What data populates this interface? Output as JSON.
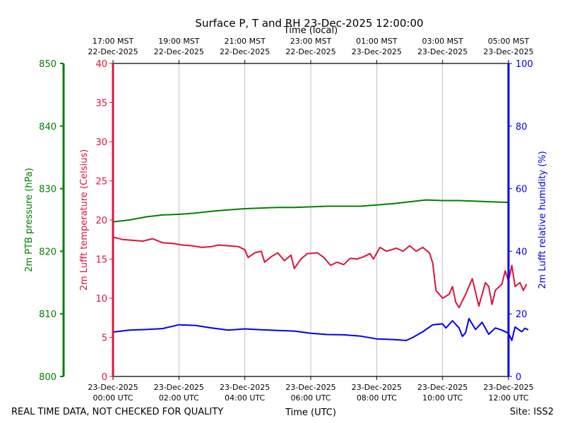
{
  "chart_data": {
    "type": "line",
    "title": "Surface P, T and RH 23-Dec-2025 12:00:00",
    "x_top_label": "Time (local)",
    "xlabel": "Time (UTC)",
    "footer_left": "REAL TIME DATA, NOT CHECKED FOR QUALITY",
    "footer_right": "Site: ISS2",
    "grid": "vertical",
    "x_utc_ticks": [
      {
        "line1": "23-Dec-2025",
        "line2": "00:00 UTC"
      },
      {
        "line1": "23-Dec-2025",
        "line2": "02:00 UTC"
      },
      {
        "line1": "23-Dec-2025",
        "line2": "04:00 UTC"
      },
      {
        "line1": "23-Dec-2025",
        "line2": "06:00 UTC"
      },
      {
        "line1": "23-Dec-2025",
        "line2": "08:00 UTC"
      },
      {
        "line1": "23-Dec-2025",
        "line2": "10:00 UTC"
      },
      {
        "line1": "23-Dec-2025",
        "line2": "12:00 UTC"
      }
    ],
    "x_local_ticks": [
      {
        "line1": "17:00 MST",
        "line2": "22-Dec-2025"
      },
      {
        "line1": "19:00 MST",
        "line2": "22-Dec-2025"
      },
      {
        "line1": "21:00 MST",
        "line2": "22-Dec-2025"
      },
      {
        "line1": "23:00 MST",
        "line2": "22-Dec-2025"
      },
      {
        "line1": "01:00 MST",
        "line2": "23-Dec-2025"
      },
      {
        "line1": "03:00 MST",
        "line2": "23-Dec-2025"
      },
      {
        "line1": "05:00 MST",
        "line2": "23-Dec-2025"
      }
    ],
    "xlim_hours_utc": [
      0,
      12
    ],
    "axes": {
      "pressure": {
        "label": "2m PTB pressure (hPa)",
        "ylim": [
          800,
          850
        ],
        "ticks": [
          800,
          810,
          820,
          830,
          840,
          850
        ],
        "color": "#008000",
        "side": "far-left"
      },
      "temperature": {
        "label": "2m Lufft temperature (Celsius)",
        "ylim": [
          0,
          40
        ],
        "ticks": [
          0,
          5,
          10,
          15,
          20,
          25,
          30,
          35,
          40
        ],
        "color": "#dc143c",
        "side": "left"
      },
      "humidity": {
        "label": "2m Lufft relative humidity (%)",
        "ylim": [
          0,
          100
        ],
        "ticks": [
          0,
          20,
          40,
          60,
          80,
          100
        ],
        "color": "#0000ee",
        "side": "right"
      }
    },
    "series": [
      {
        "axis": "pressure",
        "color": "#008000",
        "points": [
          [
            0,
            824.7
          ],
          [
            0.5,
            825.0
          ],
          [
            1,
            825.5
          ],
          [
            1.5,
            825.8
          ],
          [
            2,
            825.9
          ],
          [
            2.5,
            826.1
          ],
          [
            3,
            826.4
          ],
          [
            3.5,
            826.6
          ],
          [
            4,
            826.8
          ],
          [
            4.5,
            826.9
          ],
          [
            5,
            827.0
          ],
          [
            5.5,
            827.0
          ],
          [
            6,
            827.1
          ],
          [
            6.5,
            827.2
          ],
          [
            7,
            827.2
          ],
          [
            7.5,
            827.2
          ],
          [
            8,
            827.4
          ],
          [
            8.5,
            827.6
          ],
          [
            9,
            827.9
          ],
          [
            9.5,
            828.2
          ],
          [
            10,
            828.1
          ],
          [
            10.5,
            828.1
          ],
          [
            11,
            828.0
          ],
          [
            11.5,
            827.9
          ],
          [
            12,
            827.8
          ]
        ]
      },
      {
        "axis": "temperature",
        "color": "#dc143c",
        "points": [
          [
            0,
            17.8
          ],
          [
            0.3,
            17.5
          ],
          [
            0.6,
            17.4
          ],
          [
            0.9,
            17.3
          ],
          [
            1.2,
            17.6
          ],
          [
            1.5,
            17.1
          ],
          [
            1.8,
            17.0
          ],
          [
            2.1,
            16.8
          ],
          [
            2.4,
            16.7
          ],
          [
            2.7,
            16.5
          ],
          [
            3.0,
            16.6
          ],
          [
            3.2,
            16.8
          ],
          [
            3.5,
            16.7
          ],
          [
            3.8,
            16.6
          ],
          [
            4.0,
            16.2
          ],
          [
            4.1,
            15.2
          ],
          [
            4.3,
            15.8
          ],
          [
            4.5,
            16.0
          ],
          [
            4.6,
            14.6
          ],
          [
            4.8,
            15.3
          ],
          [
            5.0,
            15.8
          ],
          [
            5.2,
            14.8
          ],
          [
            5.4,
            15.5
          ],
          [
            5.5,
            13.8
          ],
          [
            5.7,
            15.0
          ],
          [
            5.9,
            15.7
          ],
          [
            6.2,
            15.8
          ],
          [
            6.4,
            15.2
          ],
          [
            6.6,
            14.2
          ],
          [
            6.8,
            14.6
          ],
          [
            7.0,
            14.3
          ],
          [
            7.2,
            15.1
          ],
          [
            7.4,
            15.0
          ],
          [
            7.6,
            15.3
          ],
          [
            7.8,
            15.7
          ],
          [
            7.9,
            15.0
          ],
          [
            8.1,
            16.5
          ],
          [
            8.3,
            16.0
          ],
          [
            8.6,
            16.4
          ],
          [
            8.8,
            16.0
          ],
          [
            9.0,
            16.7
          ],
          [
            9.2,
            16.0
          ],
          [
            9.4,
            16.5
          ],
          [
            9.6,
            15.8
          ],
          [
            9.7,
            14.5
          ],
          [
            9.8,
            11.0
          ],
          [
            10.0,
            10.0
          ],
          [
            10.2,
            10.5
          ],
          [
            10.3,
            11.5
          ],
          [
            10.4,
            9.5
          ],
          [
            10.5,
            8.8
          ],
          [
            10.7,
            10.5
          ],
          [
            10.9,
            12.5
          ],
          [
            11.0,
            10.8
          ],
          [
            11.1,
            9.0
          ],
          [
            11.3,
            12.0
          ],
          [
            11.4,
            11.5
          ],
          [
            11.5,
            9.2
          ],
          [
            11.6,
            11.0
          ],
          [
            11.8,
            11.8
          ],
          [
            11.9,
            13.5
          ],
          [
            12.0,
            12.2
          ],
          [
            12.1,
            14.2
          ],
          [
            12.2,
            11.5
          ],
          [
            12.35,
            12.0
          ],
          [
            12.45,
            11.0
          ],
          [
            12.55,
            11.8
          ]
        ]
      },
      {
        "axis": "humidity",
        "color": "#0000ee",
        "points": [
          [
            0,
            14.2
          ],
          [
            0.5,
            14.8
          ],
          [
            1.0,
            15.0
          ],
          [
            1.5,
            15.3
          ],
          [
            2.0,
            16.5
          ],
          [
            2.5,
            16.3
          ],
          [
            3.0,
            15.5
          ],
          [
            3.5,
            14.8
          ],
          [
            4.0,
            15.2
          ],
          [
            4.5,
            14.9
          ],
          [
            5.0,
            14.7
          ],
          [
            5.5,
            14.5
          ],
          [
            6.0,
            13.8
          ],
          [
            6.5,
            13.4
          ],
          [
            7.0,
            13.3
          ],
          [
            7.5,
            12.9
          ],
          [
            8.0,
            12.0
          ],
          [
            8.5,
            11.8
          ],
          [
            8.9,
            11.5
          ],
          [
            9.1,
            12.5
          ],
          [
            9.4,
            14.3
          ],
          [
            9.7,
            16.5
          ],
          [
            10.0,
            16.8
          ],
          [
            10.1,
            15.5
          ],
          [
            10.3,
            17.8
          ],
          [
            10.5,
            15.5
          ],
          [
            10.6,
            12.8
          ],
          [
            10.7,
            14.0
          ],
          [
            10.8,
            18.5
          ],
          [
            11.0,
            15.0
          ],
          [
            11.2,
            17.3
          ],
          [
            11.4,
            13.5
          ],
          [
            11.6,
            15.5
          ],
          [
            11.8,
            14.8
          ],
          [
            12.0,
            13.8
          ],
          [
            12.1,
            11.5
          ],
          [
            12.2,
            15.8
          ],
          [
            12.4,
            14.3
          ],
          [
            12.5,
            15.4
          ],
          [
            12.6,
            14.9
          ]
        ]
      }
    ]
  }
}
